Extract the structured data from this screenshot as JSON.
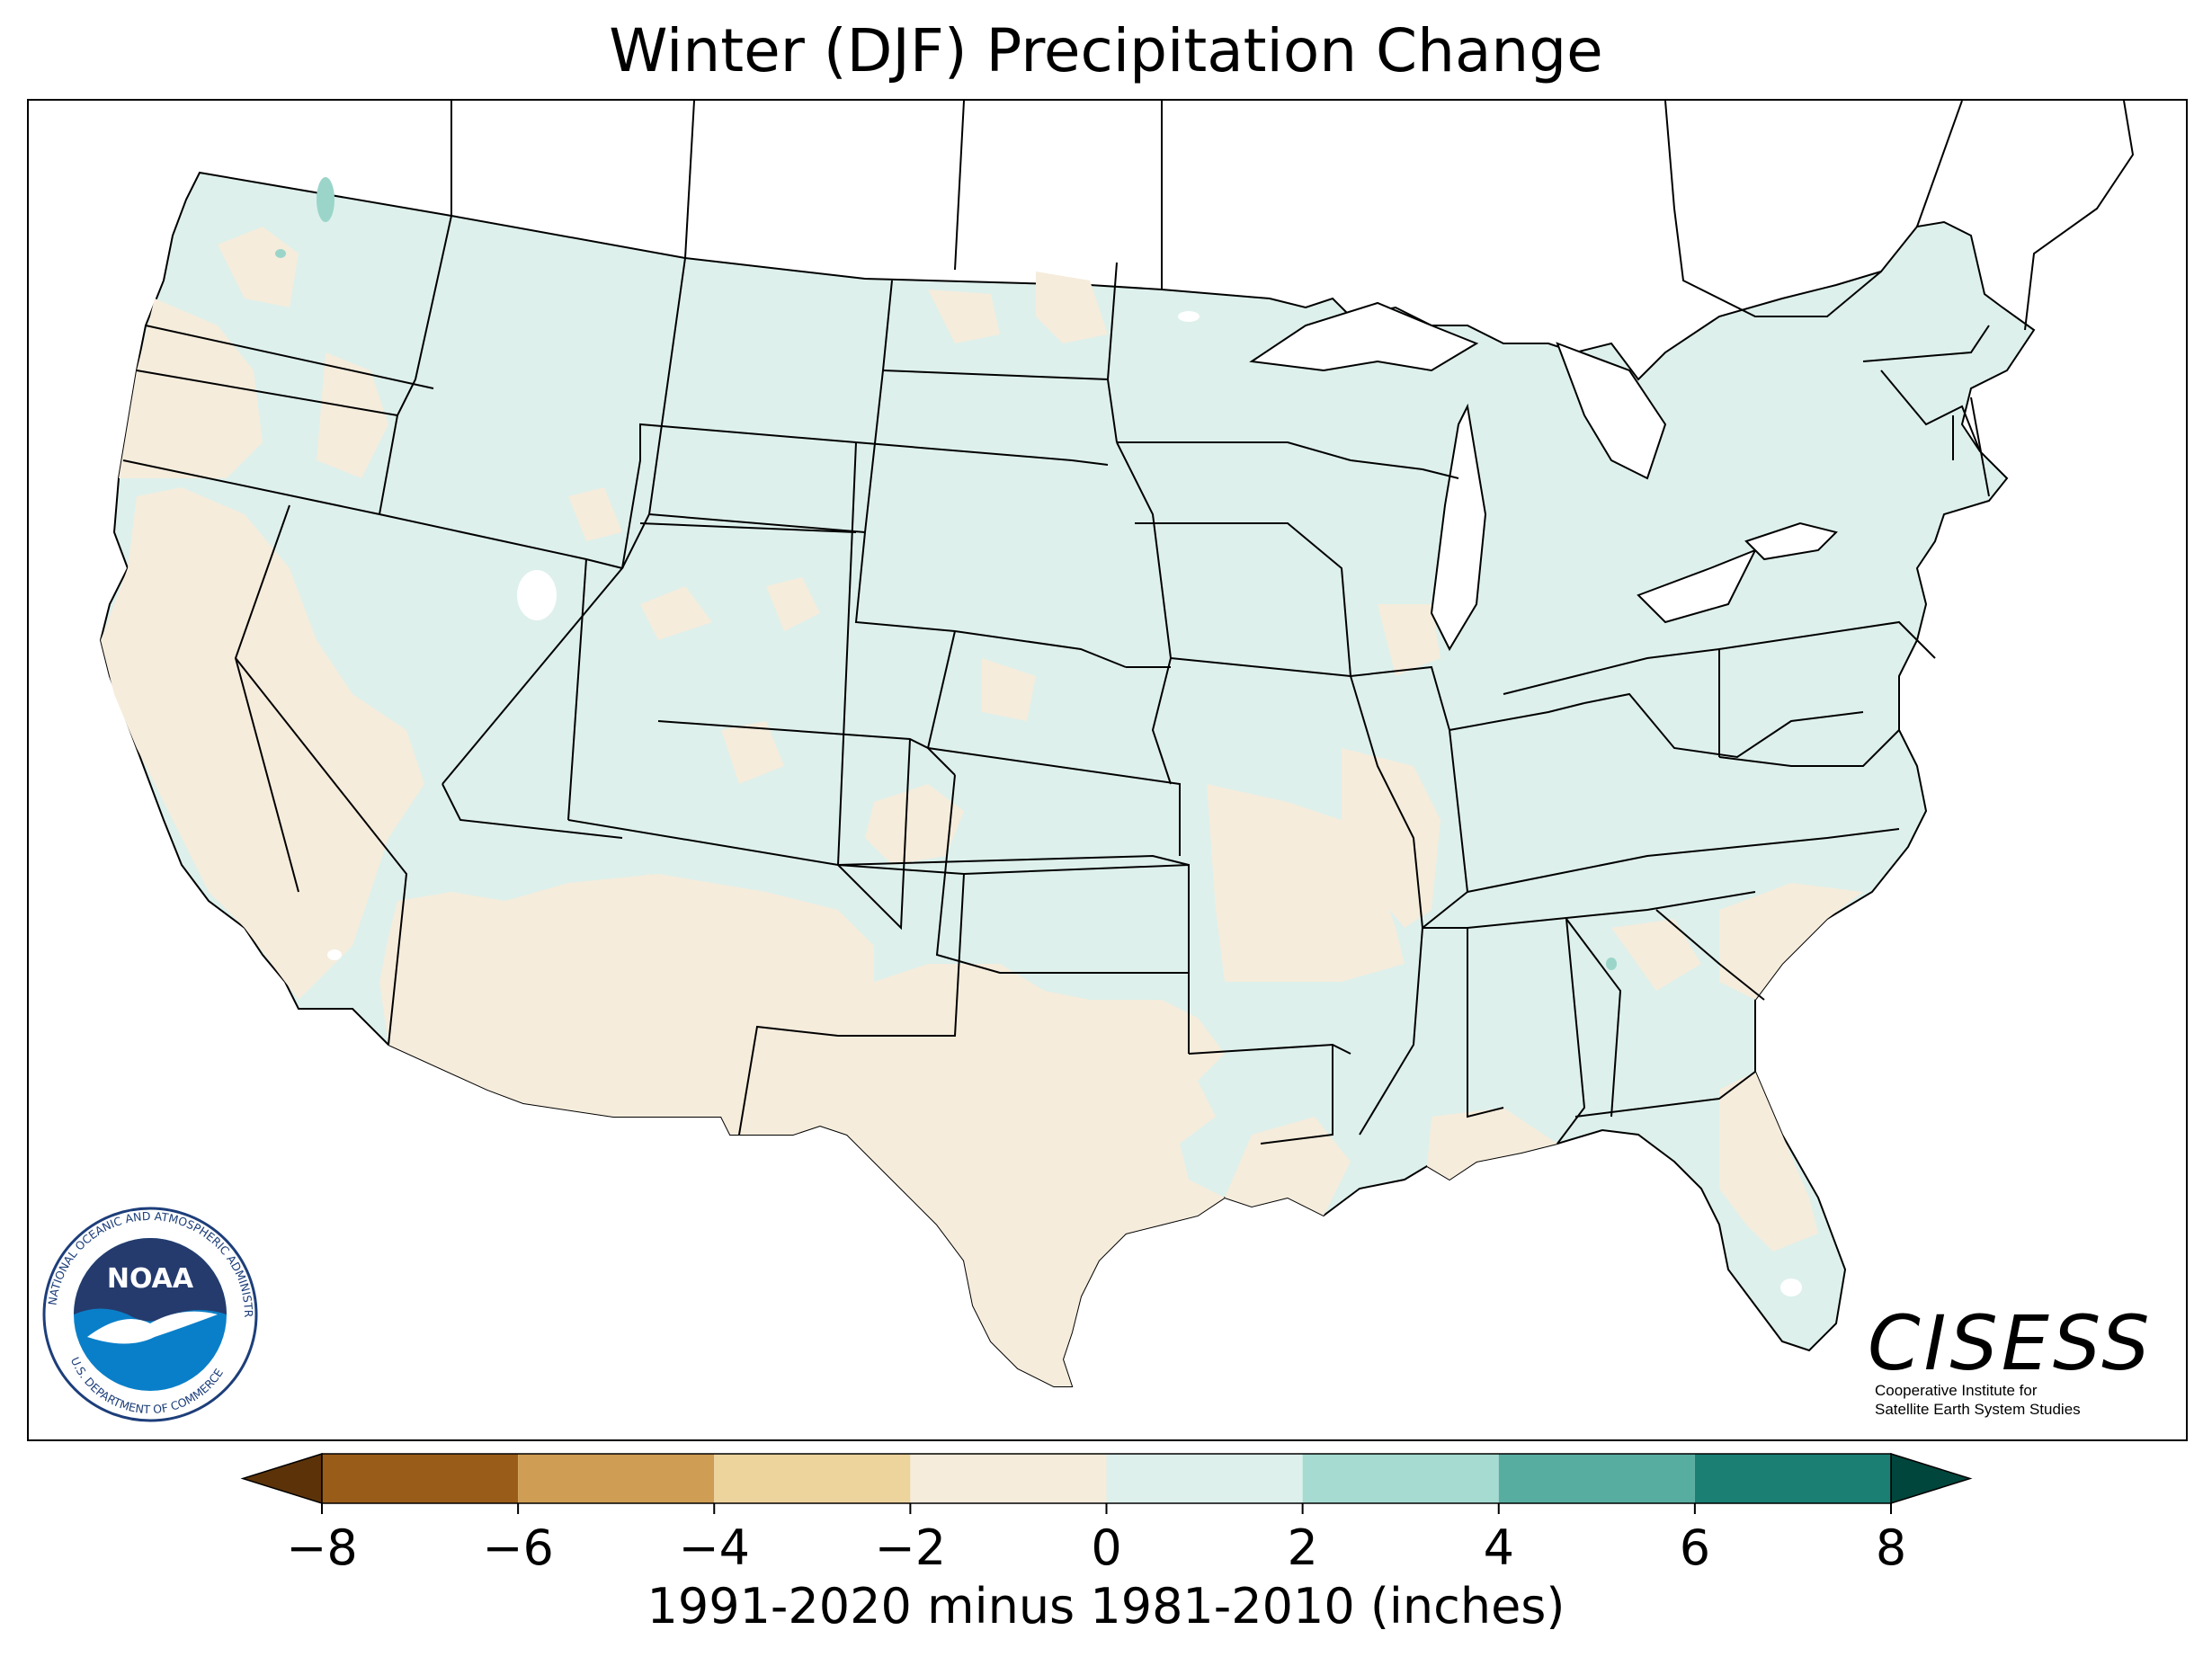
{
  "title": "Winter (DJF) Precipitation Change",
  "map": {
    "legend_colors": {
      "drier_0_2": "#f5ecdc",
      "wetter_0_2": "#ddf0ec",
      "wetter_2_4": "#9bd5c9",
      "border": "#000000",
      "missing": "#ffffff"
    }
  },
  "colorbar": {
    "label": "1991-2020 minus 1981-2010 (inches)",
    "ticks": [
      "−8",
      "−6",
      "−4",
      "−2",
      "0",
      "2",
      "4",
      "6",
      "8"
    ],
    "tick_values": [
      -8,
      -6,
      -4,
      -2,
      0,
      2,
      4,
      6,
      8
    ],
    "colors": [
      "#9a5c19",
      "#cf9d53",
      "#edd49d",
      "#f5ecdc",
      "#ddf0ec",
      "#a5dbd1",
      "#58ada1",
      "#1b7f74"
    ],
    "extend_low_color": "#5c3309",
    "extend_high_color": "#00463c"
  },
  "logos": {
    "noaa": {
      "center_text": "NOAA",
      "ring_text": "NATIONAL OCEANIC AND ATMOSPHERIC ADMINISTRATION",
      "ring_text_bottom": "U.S. DEPARTMENT OF COMMERCE"
    },
    "cisess": {
      "name": "CISESS",
      "line1": "Cooperative Institute for",
      "line2": "Satellite Earth System Studies"
    }
  }
}
